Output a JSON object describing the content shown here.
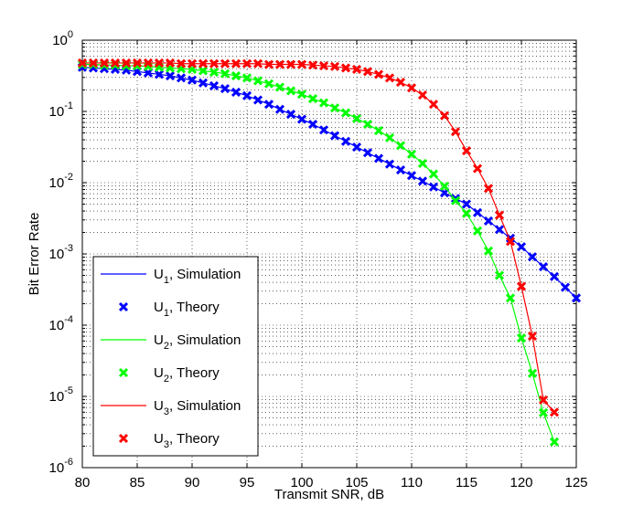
{
  "chart_data": {
    "type": "line",
    "x_label": "Transmit SNR, dB",
    "y_label": "Bit Error Rate",
    "xlim": [
      80,
      125
    ],
    "xticks": [
      80,
      85,
      90,
      95,
      100,
      105,
      110,
      115,
      120,
      125
    ],
    "ylim": [
      1e-06,
      1
    ],
    "y_log": true,
    "grid": true,
    "legend": "lower left",
    "yticks": [
      {
        "value": 1e-06,
        "label": "10",
        "exponent": "-6"
      },
      {
        "value": 1e-05,
        "label": "10",
        "exponent": "-5"
      },
      {
        "value": 0.0001,
        "label": "10",
        "exponent": "-4"
      },
      {
        "value": 0.001,
        "label": "10",
        "exponent": "-3"
      },
      {
        "value": 0.01,
        "label": "10",
        "exponent": "-2"
      },
      {
        "value": 0.1,
        "label": "10",
        "exponent": "-1"
      },
      {
        "value": 1,
        "label": "10",
        "exponent": "0"
      }
    ],
    "x": [
      80,
      81,
      82,
      83,
      84,
      85,
      86,
      87,
      88,
      89,
      90,
      91,
      92,
      93,
      94,
      95,
      96,
      97,
      98,
      99,
      100,
      101,
      102,
      103,
      104,
      105,
      106,
      107,
      108,
      109,
      110,
      111,
      112,
      113,
      114,
      115,
      116,
      117,
      118,
      119,
      120,
      121,
      122,
      123,
      124,
      125
    ],
    "series": [
      {
        "name": "U1, Simulation",
        "style": "line",
        "color": "#0000ff",
        "values": [
          0.417,
          0.407,
          0.398,
          0.389,
          0.38,
          0.363,
          0.347,
          0.331,
          0.316,
          0.295,
          0.275,
          0.251,
          0.229,
          0.209,
          0.186,
          0.166,
          0.145,
          0.126,
          0.107,
          0.0912,
          0.0776,
          0.0661,
          0.055,
          0.0457,
          0.038,
          0.0316,
          0.0263,
          0.0219,
          0.0182,
          0.0151,
          0.0126,
          0.0105,
          0.0087,
          0.0072,
          0.006,
          0.005,
          0.0038,
          0.0029,
          0.0022,
          0.00166,
          0.00126,
          0.00091,
          0.00066,
          0.00048,
          0.00034,
          0.00024
        ]
      },
      {
        "name": "U1, Theory",
        "style": "marker",
        "color": "#0000ff",
        "values": [
          0.417,
          0.407,
          0.398,
          0.389,
          0.38,
          0.363,
          0.347,
          0.331,
          0.316,
          0.295,
          0.275,
          0.251,
          0.229,
          0.209,
          0.186,
          0.166,
          0.145,
          0.126,
          0.107,
          0.0912,
          0.0776,
          0.0661,
          0.055,
          0.0457,
          0.038,
          0.0316,
          0.0263,
          0.0219,
          0.0182,
          0.0151,
          0.0126,
          0.0105,
          0.0087,
          0.0072,
          0.006,
          0.005,
          0.0038,
          0.0029,
          0.0022,
          0.00166,
          0.00126,
          0.00091,
          0.00066,
          0.00048,
          0.00034,
          0.00024
        ]
      },
      {
        "name": "U2, Simulation",
        "style": "line",
        "color": "#00ff00",
        "values": [
          0.457,
          0.457,
          0.447,
          0.447,
          0.437,
          0.437,
          0.427,
          0.417,
          0.407,
          0.398,
          0.389,
          0.372,
          0.355,
          0.339,
          0.316,
          0.295,
          0.269,
          0.245,
          0.219,
          0.195,
          0.174,
          0.151,
          0.132,
          0.112,
          0.0955,
          0.0794,
          0.0661,
          0.0537,
          0.0427,
          0.0331,
          0.0251,
          0.0186,
          0.0132,
          0.0089,
          0.0056,
          0.0037,
          0.0021,
          0.0011,
          0.0005,
          0.00024,
          6.6e-05,
          2.1e-05,
          5.9e-06,
          2.3e-06,
          null,
          null
        ]
      },
      {
        "name": "U2, Theory",
        "style": "marker",
        "color": "#00ff00",
        "values": [
          0.457,
          0.457,
          0.447,
          0.447,
          0.437,
          0.437,
          0.427,
          0.417,
          0.407,
          0.398,
          0.389,
          0.372,
          0.355,
          0.339,
          0.316,
          0.295,
          0.269,
          0.245,
          0.219,
          0.195,
          0.174,
          0.151,
          0.132,
          0.112,
          0.0955,
          0.0794,
          0.0661,
          0.0537,
          0.0427,
          0.0331,
          0.0251,
          0.0186,
          0.0132,
          0.0089,
          0.0056,
          0.0037,
          0.0021,
          0.0011,
          0.0005,
          0.00024,
          6.6e-05,
          2.1e-05,
          5.9e-06,
          2.3e-06,
          null,
          null
        ]
      },
      {
        "name": "U3, Simulation",
        "style": "line",
        "color": "#ff0000",
        "values": [
          0.479,
          0.479,
          0.479,
          0.479,
          0.479,
          0.479,
          0.479,
          0.479,
          0.479,
          0.468,
          0.468,
          0.468,
          0.468,
          0.468,
          0.468,
          0.468,
          0.468,
          0.457,
          0.457,
          0.457,
          0.457,
          0.447,
          0.437,
          0.427,
          0.407,
          0.389,
          0.363,
          0.331,
          0.295,
          0.257,
          0.214,
          0.17,
          0.126,
          0.087,
          0.052,
          0.028,
          0.0158,
          0.0083,
          0.0035,
          0.0015,
          0.00035,
          7e-05,
          8.9e-06,
          6e-06,
          null,
          null
        ]
      },
      {
        "name": "U3, Theory",
        "style": "marker",
        "color": "#ff0000",
        "values": [
          0.479,
          0.479,
          0.479,
          0.479,
          0.479,
          0.479,
          0.479,
          0.479,
          0.479,
          0.468,
          0.468,
          0.468,
          0.468,
          0.468,
          0.468,
          0.468,
          0.468,
          0.457,
          0.457,
          0.457,
          0.457,
          0.447,
          0.437,
          0.427,
          0.407,
          0.389,
          0.363,
          0.331,
          0.295,
          0.257,
          0.214,
          0.17,
          0.126,
          0.087,
          0.052,
          0.028,
          0.0158,
          0.0083,
          0.0035,
          0.0015,
          0.00035,
          7e-05,
          8.9e-06,
          6e-06,
          null,
          null
        ]
      }
    ]
  }
}
